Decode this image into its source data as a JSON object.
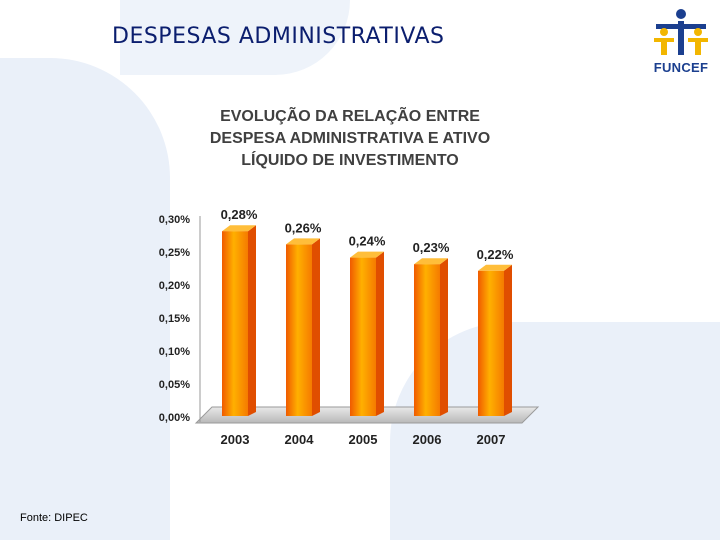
{
  "page": {
    "title": "DESPESAS ADMINISTRATIVAS",
    "logo_text": "FUNCEF",
    "source_note": "Fonte: DIPEC"
  },
  "chart_data": {
    "type": "bar",
    "title_lines": [
      "EVOLUÇÃO DA RELAÇÃO ENTRE",
      "DESPESA ADMINISTRATIVA E ATIVO",
      "LÍQUIDO DE INVESTIMENTO"
    ],
    "categories": [
      "2003",
      "2004",
      "2005",
      "2006",
      "2007"
    ],
    "values": [
      0.28,
      0.26,
      0.24,
      0.23,
      0.22
    ],
    "value_labels": [
      "0,28%",
      "0,26%",
      "0,24%",
      "0,23%",
      "0,22%"
    ],
    "y_ticks": [
      0,
      0.05,
      0.1,
      0.15,
      0.2,
      0.25,
      0.3
    ],
    "y_tick_labels": [
      "0,00%",
      "0,05%",
      "0,10%",
      "0,15%",
      "0,20%",
      "0,25%",
      "0,30%"
    ],
    "ylim": [
      0,
      0.3
    ],
    "xlabel": "",
    "ylabel": "",
    "colors": {
      "bar_light": "#ffb000",
      "bar_dark": "#f05a00",
      "title": "#0b1e6e",
      "logo_blue": "#1b3f8f",
      "logo_yellow": "#f2b600"
    }
  }
}
